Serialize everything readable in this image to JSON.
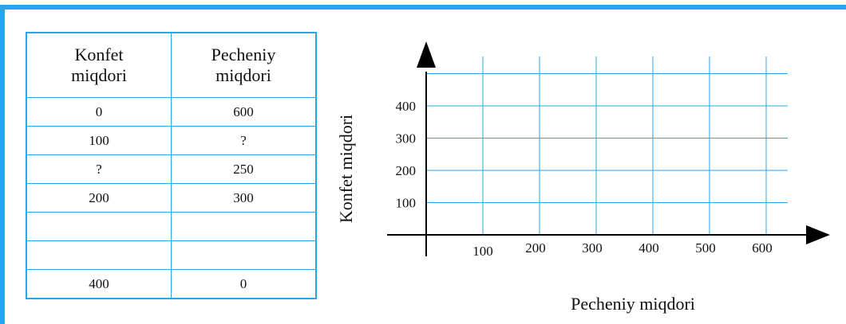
{
  "table": {
    "headers": [
      "Konfet\nmiqdori",
      "Pecheniy\nmiqdori"
    ],
    "header_lines": [
      [
        "Konfet",
        "miqdori"
      ],
      [
        "Pecheniy",
        "miqdori"
      ]
    ],
    "rows": [
      [
        "0",
        "600"
      ],
      [
        "100",
        "?"
      ],
      [
        "?",
        "250"
      ],
      [
        "200",
        "300"
      ],
      [
        "",
        ""
      ],
      [
        "",
        ""
      ],
      [
        "400",
        "0"
      ]
    ]
  },
  "chart_data": {
    "type": "scatter",
    "xlabel": "Pecheniy miqdori",
    "ylabel": "Konfet miqdori",
    "x_ticks": [
      "100",
      "200",
      "300",
      "400",
      "500",
      "600"
    ],
    "y_ticks": [
      "100",
      "200",
      "300",
      "400"
    ],
    "xlim": [
      0,
      650
    ],
    "ylim": [
      0,
      500
    ],
    "grid": true,
    "grid_color": "#29a6e6",
    "points": []
  },
  "colors": {
    "frame": "#29a6e6",
    "grid": "#29a6e6",
    "axis": "#000000"
  }
}
